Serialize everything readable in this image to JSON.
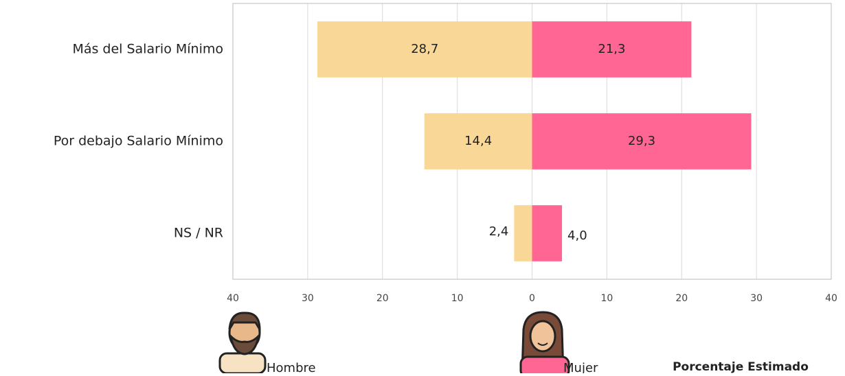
{
  "chart_data": {
    "type": "butterfly",
    "categories": [
      "Más del Salario Mínimo",
      "Por debajo Salario Mínimo",
      "NS / NR"
    ],
    "series": [
      {
        "name": "Hombre",
        "color": "#f9d796",
        "values": [
          28.7,
          14.4,
          2.4
        ],
        "value_labels": [
          "28,7",
          "14,4",
          "2,4"
        ]
      },
      {
        "name": "Mujer",
        "color": "#ff6693",
        "values": [
          21.3,
          29.3,
          4.0
        ],
        "value_labels": [
          "21,3",
          "29,3",
          "4,0"
        ]
      }
    ],
    "xlabel": "Porcentaje Estimado",
    "xlim": [
      -40,
      40
    ],
    "xticks": [
      {
        "value": -40,
        "label": "40"
      },
      {
        "value": -30,
        "label": "30"
      },
      {
        "value": -20,
        "label": "20"
      },
      {
        "value": -10,
        "label": "10"
      },
      0,
      10,
      20,
      30,
      40
    ],
    "grid": true
  }
}
